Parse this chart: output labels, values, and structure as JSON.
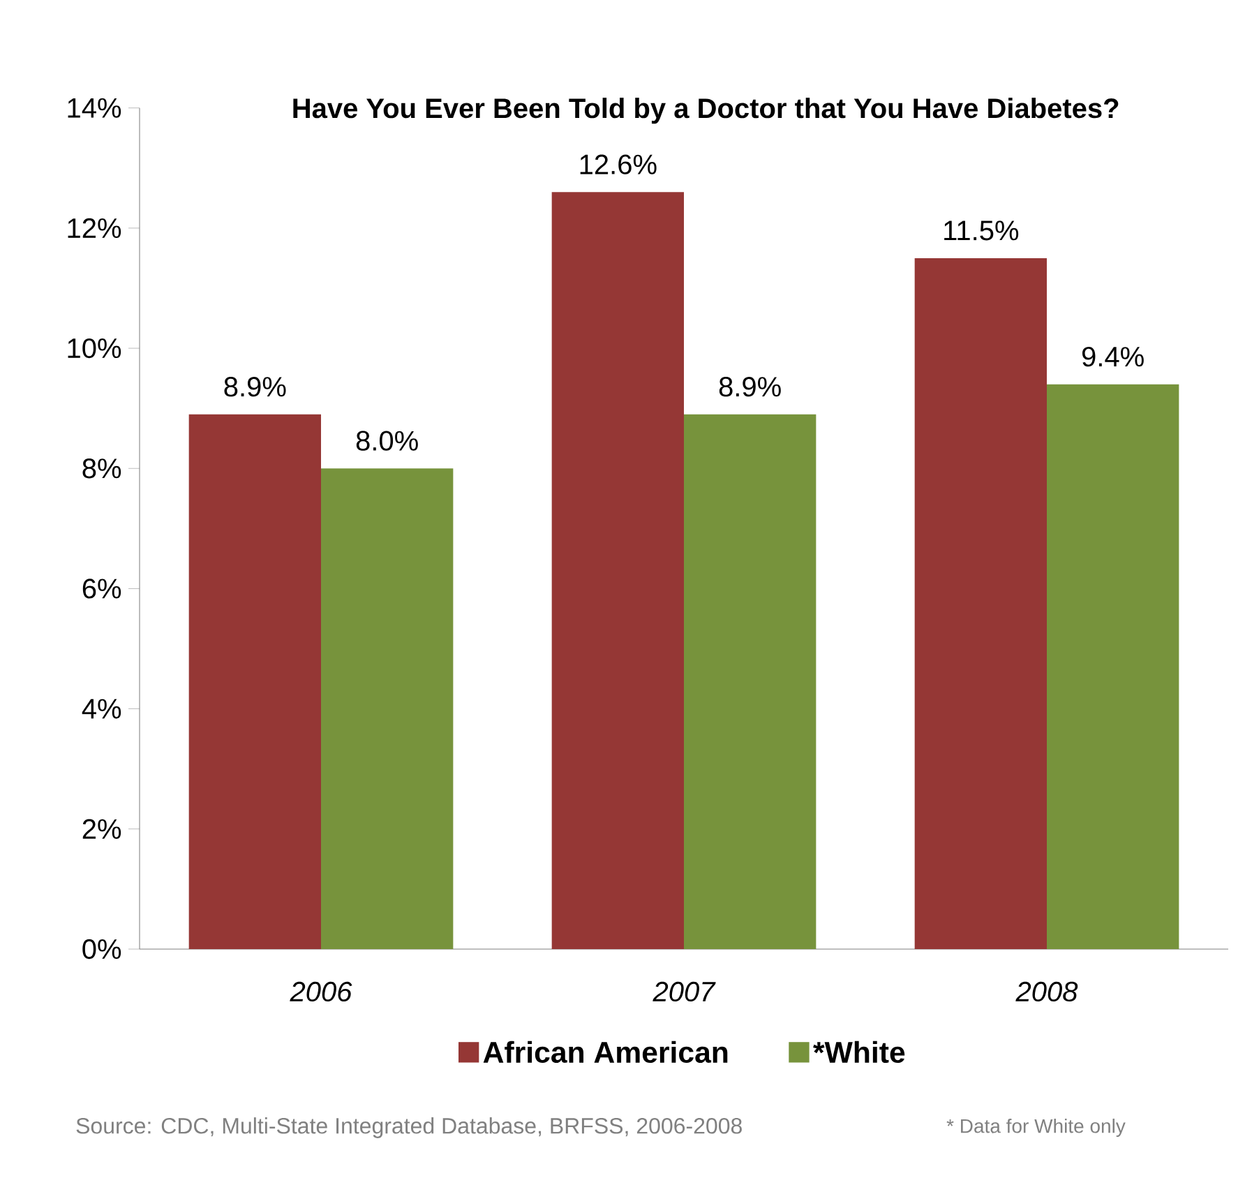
{
  "chart_data": {
    "type": "bar",
    "title": "Have You Ever Been Told by a Doctor that You Have Diabetes?",
    "categories": [
      "2006",
      "2007",
      "2008"
    ],
    "series": [
      {
        "name": "African American",
        "color": "#953735",
        "values": [
          8.9,
          12.6,
          11.5
        ],
        "value_labels": [
          "8.9%",
          "12.6%",
          "11.5%"
        ]
      },
      {
        "name": "*White",
        "color": "#77933c",
        "values": [
          8.0,
          8.9,
          9.4
        ],
        "value_labels": [
          "8.0%",
          "8.9%",
          "9.4%"
        ]
      }
    ],
    "ylim": [
      0,
      14
    ],
    "yticks": [
      {
        "value": 0,
        "label": "0%"
      },
      {
        "value": 2,
        "label": "2%"
      },
      {
        "value": 4,
        "label": "4%"
      },
      {
        "value": 6,
        "label": "6%"
      },
      {
        "value": 8,
        "label": "8%"
      },
      {
        "value": 10,
        "label": "10%"
      },
      {
        "value": 12,
        "label": "12%"
      },
      {
        "value": 14,
        "label": "14%"
      }
    ],
    "grid": false,
    "legend": "bottom",
    "annotations": [
      "Source: CDC, Multi-State Integrated Database, BRFSS, 2006-2008",
      "* Data for White only"
    ]
  }
}
